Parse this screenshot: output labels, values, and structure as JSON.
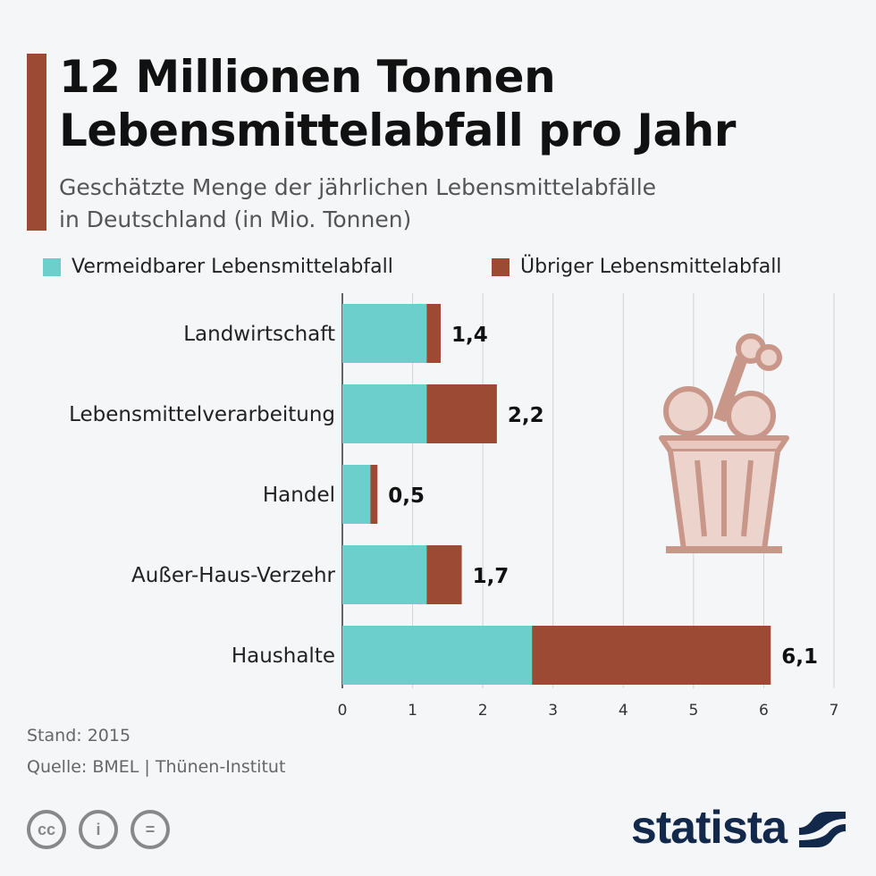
{
  "header": {
    "title_line1": "12 Millionen Tonnen",
    "title_line2": "Lebensmittelabfall pro Jahr",
    "subtitle_line1": "Geschätzte Menge der jährlichen Lebensmittelabfälle",
    "subtitle_line2": "in Deutschland (in Mio. Tonnen)"
  },
  "chart_data": {
    "type": "bar",
    "orientation": "horizontal",
    "stacked": true,
    "categories": [
      "Landwirtschaft",
      "Lebensmittelverarbeitung",
      "Handel",
      "Außer-Haus-Verzehr",
      "Haushalte"
    ],
    "series": [
      {
        "name": "Vermeidbarer Lebensmittelabfall",
        "color": "#6dcfcb",
        "values": [
          1.2,
          1.2,
          0.4,
          1.2,
          2.7
        ]
      },
      {
        "name": "Übriger Lebensmittelabfall",
        "color": "#9c4a33",
        "values": [
          0.2,
          1.0,
          0.1,
          0.5,
          3.4
        ]
      }
    ],
    "totals": [
      1.4,
      2.2,
      0.5,
      1.7,
      6.1
    ],
    "data_labels": [
      "1,4",
      "2,2",
      "0,5",
      "1,7",
      "6,1"
    ],
    "xlim": [
      0,
      7
    ],
    "xticks": [
      "0",
      "1",
      "2",
      "3",
      "4",
      "5",
      "6",
      "7"
    ],
    "grid": true,
    "legend_position": "top"
  },
  "footer": {
    "stand": "Stand: 2015",
    "quelle": "Quelle: BMEL | Thünen-Institut",
    "brand": "statista",
    "cc_icons": [
      "cc",
      "by",
      "nd"
    ]
  },
  "colors": {
    "accent": "#9c4a33",
    "teal": "#6dcfcb",
    "illustration": "#c9968a"
  }
}
